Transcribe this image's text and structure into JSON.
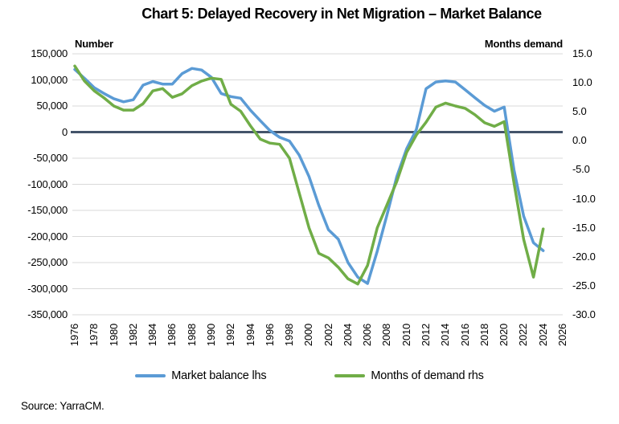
{
  "title": "Chart 5: Delayed Recovery in Net Migration – Market Balance",
  "source": "Source: YarraCM.",
  "legend": {
    "market_balance_label": "Market balance lhs",
    "months_demand_label": "Months of demand rhs"
  },
  "chart_data": {
    "type": "line",
    "title": "Chart 5: Delayed Recovery in Net Migration – Market Balance",
    "x": [
      1976,
      1977,
      1978,
      1979,
      1980,
      1981,
      1982,
      1983,
      1984,
      1985,
      1986,
      1987,
      1988,
      1989,
      1990,
      1991,
      1992,
      1993,
      1994,
      1995,
      1996,
      1997,
      1998,
      1999,
      2000,
      2001,
      2002,
      2003,
      2004,
      2005,
      2006,
      2007,
      2008,
      2009,
      2010,
      2011,
      2012,
      2013,
      2014,
      2015,
      2016,
      2017,
      2018,
      2019,
      2020,
      2021,
      2022,
      2023,
      2024
    ],
    "series": [
      {
        "name": "Market balance lhs",
        "axis": "left",
        "color": "#5B9BD5",
        "values": [
          120000,
          103000,
          85000,
          74000,
          64000,
          58000,
          62000,
          90000,
          97000,
          92000,
          92000,
          112000,
          122000,
          119000,
          105000,
          74000,
          68000,
          65000,
          42000,
          22000,
          3000,
          -10000,
          -17000,
          -44000,
          -85000,
          -140000,
          -187000,
          -205000,
          -250000,
          -278000,
          -290000,
          -228000,
          -158000,
          -85000,
          -32000,
          5000,
          83000,
          96000,
          98000,
          96000,
          81000,
          66000,
          51000,
          40000,
          48000,
          -72000,
          -161000,
          -212000,
          -227000
        ]
      },
      {
        "name": "Months of demand rhs",
        "axis": "right",
        "color": "#70AD47",
        "values": [
          12.9,
          10.3,
          8.6,
          7.4,
          6.0,
          5.3,
          5.3,
          6.4,
          8.6,
          9.0,
          7.5,
          8.1,
          9.5,
          10.3,
          10.8,
          10.6,
          6.3,
          5.1,
          2.6,
          0.3,
          -0.4,
          -0.6,
          -3.0,
          -9.0,
          -15.0,
          -19.4,
          -20.2,
          -21.8,
          -23.8,
          -24.7,
          -21.5,
          -15.0,
          -11.0,
          -7.0,
          -2.0,
          1.0,
          3.2,
          5.8,
          6.5,
          6.0,
          5.6,
          4.5,
          3.1,
          2.5,
          3.3,
          -7.2,
          -17.0,
          -23.5,
          -15.2
        ]
      }
    ],
    "left_axis": {
      "label": "Number",
      "min": -350000,
      "max": 150000,
      "tick_values": [
        150000,
        100000,
        50000,
        0,
        -50000,
        -100000,
        -150000,
        -200000,
        -250000,
        -300000,
        -350000
      ],
      "tick_labels": [
        "150,000",
        "100,000",
        "50,000",
        "0",
        "-50,000",
        "-100,000",
        "-150,000",
        "-200,000",
        "-250,000",
        "-300,000",
        "-350,000"
      ]
    },
    "right_axis": {
      "label": "Months demand",
      "min": -30,
      "max": 15,
      "tick_values": [
        15,
        10,
        5,
        0,
        -5,
        -10,
        -15,
        -20,
        -25,
        -30
      ],
      "tick_labels": [
        "15.0",
        "10.0",
        "5.0",
        "0.0",
        "-5.0",
        "-10.0",
        "-15.0",
        "-20.0",
        "-25.0",
        "-30.0"
      ]
    },
    "x_axis": {
      "range": [
        1976,
        2026
      ],
      "tick_years": [
        1976,
        1978,
        1980,
        1982,
        1984,
        1986,
        1988,
        1990,
        1992,
        1994,
        1996,
        1998,
        2000,
        2002,
        2004,
        2006,
        2008,
        2010,
        2012,
        2014,
        2016,
        2018,
        2020,
        2022,
        2024,
        2026
      ],
      "tick_labels": [
        "1976",
        "1978",
        "1980",
        "1982",
        "1984",
        "1986",
        "1988",
        "1990",
        "1992",
        "1994",
        "1996",
        "1998",
        "2000",
        "2002",
        "2004",
        "2006",
        "2008",
        "2010",
        "2012",
        "2014",
        "2016",
        "2018",
        "2020",
        "2022",
        "2024",
        "2026"
      ]
    },
    "grid": true,
    "grid_color": "#D9D9D9",
    "zero_line_color": "#44546A",
    "legend_position": "bottom"
  }
}
